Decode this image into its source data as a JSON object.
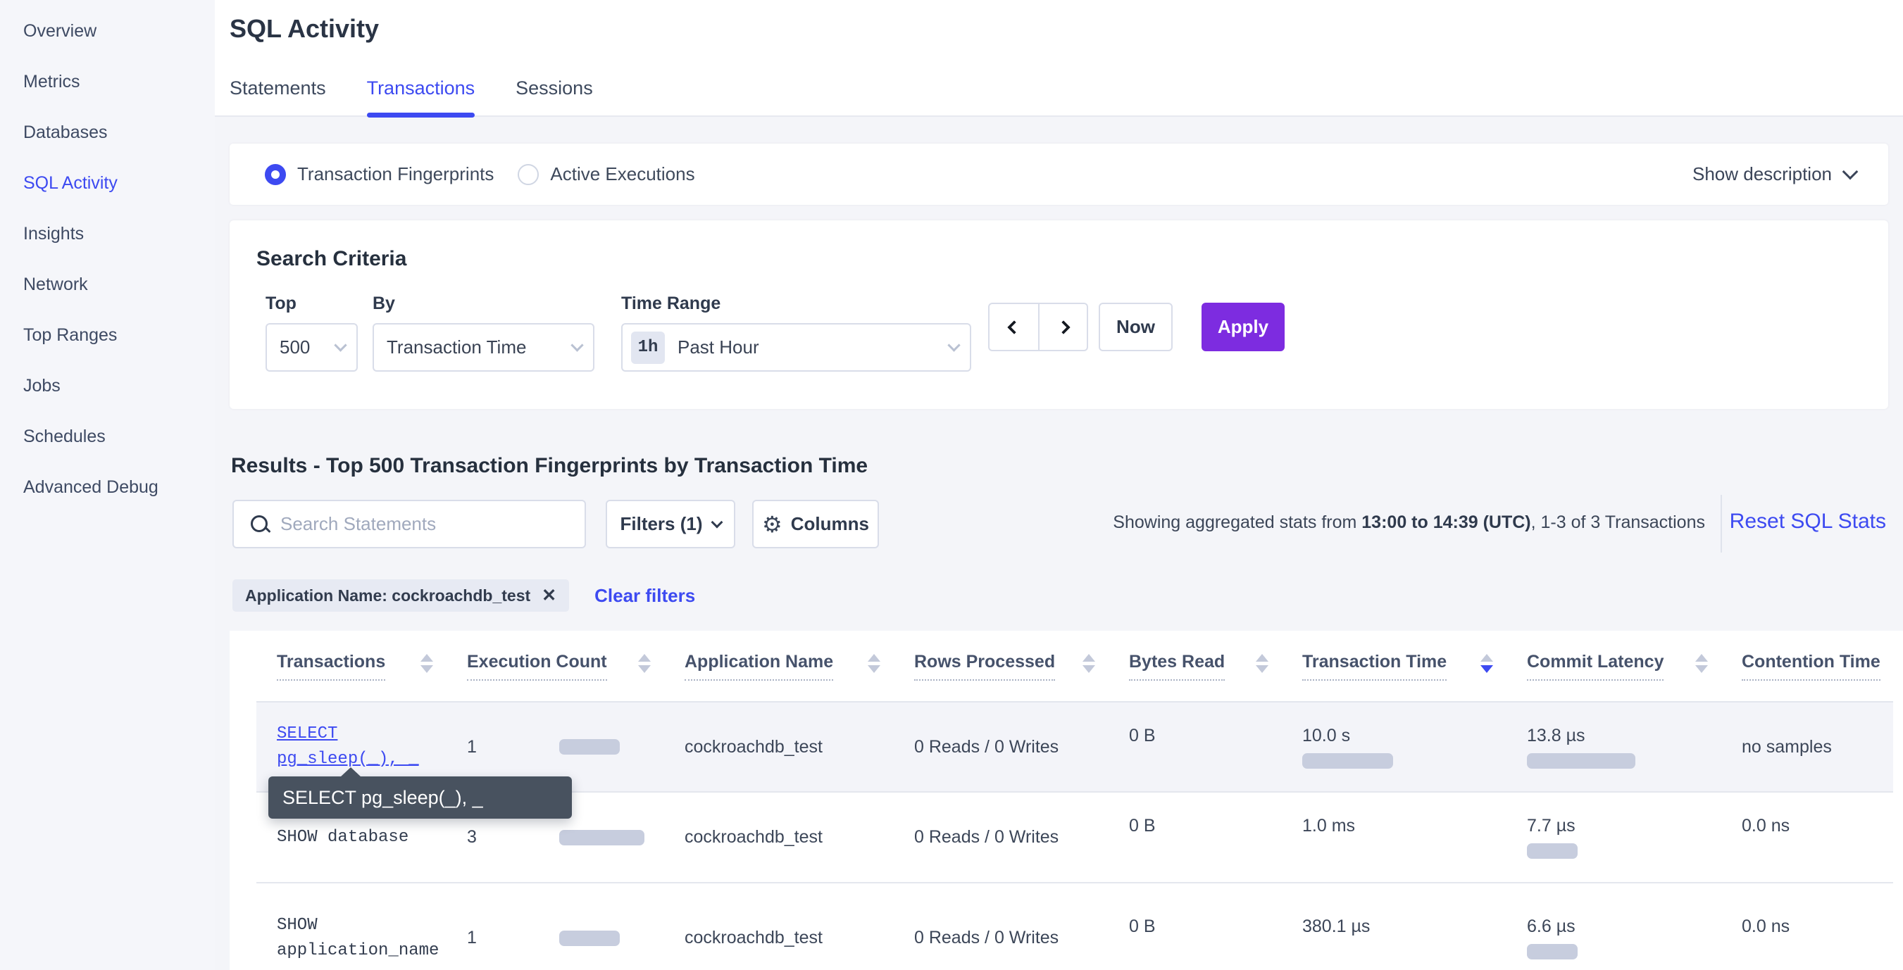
{
  "colors": {
    "accent_blue": "#3d4af1",
    "apply_purple": "#7d2ce0",
    "bar": "#c7cdde",
    "tooltip_bg": "#48525f"
  },
  "sidebar": {
    "items": [
      {
        "label": "Overview"
      },
      {
        "label": "Metrics"
      },
      {
        "label": "Databases"
      },
      {
        "label": "SQL Activity"
      },
      {
        "label": "Insights"
      },
      {
        "label": "Network"
      },
      {
        "label": "Top Ranges"
      },
      {
        "label": "Jobs"
      },
      {
        "label": "Schedules"
      },
      {
        "label": "Advanced Debug"
      }
    ]
  },
  "header": {
    "title": "SQL Activity",
    "tabs": [
      {
        "label": "Statements"
      },
      {
        "label": "Transactions"
      },
      {
        "label": "Sessions"
      }
    ]
  },
  "view_mode": {
    "options": [
      {
        "label": "Transaction Fingerprints"
      },
      {
        "label": "Active Executions"
      }
    ],
    "show_description_label": "Show description"
  },
  "search_criteria": {
    "title": "Search Criteria",
    "top": {
      "label": "Top",
      "value": "500"
    },
    "by": {
      "label": "By",
      "value": "Transaction Time"
    },
    "time_range": {
      "label": "Time Range",
      "badge": "1h",
      "value": "Past Hour"
    },
    "now_label": "Now",
    "apply_label": "Apply"
  },
  "results": {
    "heading": "Results - Top 500 Transaction Fingerprints by Transaction Time",
    "search_placeholder": "Search Statements",
    "filters_label": "Filters (1)",
    "columns_label": "Columns",
    "stats_prefix": "Showing aggregated stats from ",
    "stats_bold": "13:00 to 14:39 (UTC)",
    "stats_suffix": ", 1-3 of 3 Transactions",
    "reset_label": "Reset SQL Stats",
    "filter_chip": "Application Name: cockroachdb_test",
    "clear_filters_label": "Clear filters"
  },
  "tooltip": {
    "text": "SELECT pg_sleep(_), _"
  },
  "table": {
    "columns": [
      {
        "label": "Transactions"
      },
      {
        "label": "Execution Count"
      },
      {
        "label": "Application Name"
      },
      {
        "label": "Rows Processed"
      },
      {
        "label": "Bytes Read"
      },
      {
        "label": "Transaction Time"
      },
      {
        "label": "Commit Latency"
      },
      {
        "label": "Contention Time"
      }
    ],
    "sorted_column": "Transaction Time",
    "rows": [
      {
        "transaction_line1": "SELECT",
        "transaction_line2": "pg_sleep(_), _",
        "execution_count": "1",
        "execution_bar": 86,
        "application_name": "cockroachdb_test",
        "rows_processed": "0 Reads / 0 Writes",
        "bytes_read": "0 B",
        "transaction_time": "10.0 s",
        "transaction_time_bar": 129,
        "commit_latency": "13.8 µs",
        "commit_latency_bar": 154,
        "contention_time": "no samples"
      },
      {
        "transaction_line1": "SHOW database",
        "transaction_line2": "",
        "execution_count": "3",
        "execution_bar": 121,
        "application_name": "cockroachdb_test",
        "rows_processed": "0 Reads / 0 Writes",
        "bytes_read": "0 B",
        "transaction_time": "1.0 ms",
        "transaction_time_bar": 0,
        "commit_latency": "7.7 µs",
        "commit_latency_bar": 72,
        "contention_time": "0.0 ns"
      },
      {
        "transaction_line1": "SHOW",
        "transaction_line2": "application_name",
        "execution_count": "1",
        "execution_bar": 86,
        "application_name": "cockroachdb_test",
        "rows_processed": "0 Reads / 0 Writes",
        "bytes_read": "0 B",
        "transaction_time": "380.1 µs",
        "transaction_time_bar": 0,
        "commit_latency": "6.6 µs",
        "commit_latency_bar": 72,
        "contention_time": "0.0 ns"
      }
    ]
  }
}
